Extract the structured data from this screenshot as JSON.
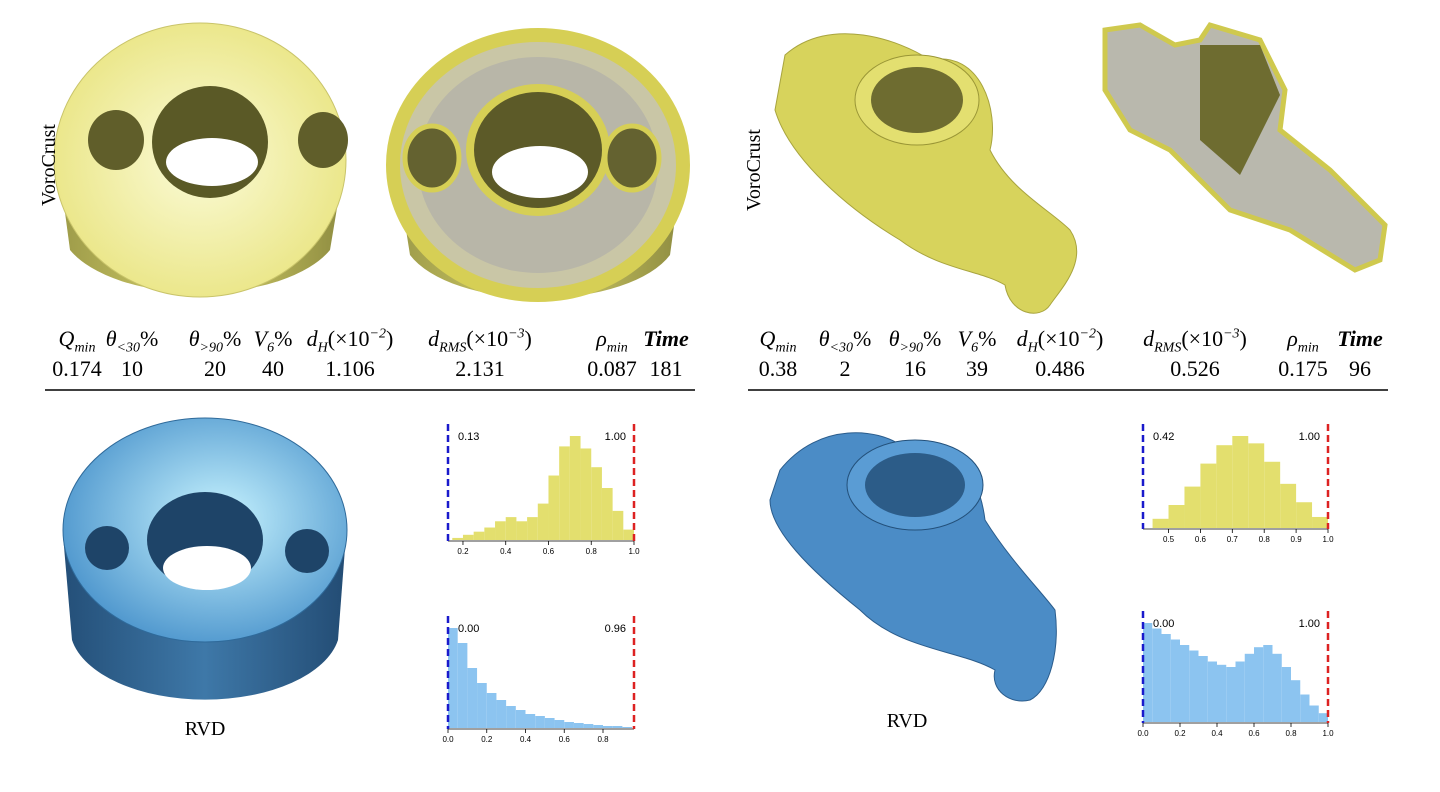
{
  "panels": [
    {
      "top_label": "VoroCrust",
      "bottom_label": "RVD",
      "table": {
        "headers": [
          {
            "t": "Q",
            "sub": "min"
          },
          {
            "t": "θ",
            "sub": "<30",
            "end": "%"
          },
          {
            "t": "θ",
            "sub": ">90",
            "end": "%"
          },
          {
            "t": "V",
            "sub": "6",
            "end": "%"
          },
          {
            "t": "d",
            "sub": "H",
            "mid": "(×10",
            "sup": "−2",
            "end": ")"
          },
          {
            "t": "d",
            "sub": "RMS",
            "mid": "(×10",
            "sup": "−3",
            "end": ")"
          },
          {
            "t": "ρ",
            "sub": "min"
          },
          {
            "t": "Time",
            "bold": true
          }
        ],
        "values": [
          0.174,
          10,
          20,
          40,
          1.106,
          2.131,
          0.087,
          181
        ]
      },
      "histograms": [
        {
          "color": "#e3df6e",
          "markers": [
            {
              "value": 0.13,
              "label": "0.13",
              "color": "#1a1acc"
            },
            {
              "value": 1.0,
              "label": "1.00",
              "color": "#dd2222"
            }
          ],
          "ticks": [
            {
              "value": 0.2,
              "label": "0.2"
            },
            {
              "value": 0.4,
              "label": "0.4"
            },
            {
              "value": 0.6,
              "label": "0.6"
            },
            {
              "value": 0.8,
              "label": "0.8"
            },
            {
              "value": 1.0,
              "label": "1.0"
            }
          ],
          "bins": [
            0.15,
            0.2,
            0.25,
            0.3,
            0.35,
            0.4,
            0.45,
            0.5,
            0.55,
            0.6,
            0.65,
            0.7,
            0.75,
            0.8,
            0.85,
            0.9,
            0.95,
            1.0
          ],
          "counts": [
            2,
            5,
            8,
            12,
            18,
            22,
            18,
            22,
            35,
            62,
            90,
            100,
            88,
            70,
            50,
            28,
            10
          ]
        },
        {
          "color": "#8cc4f0",
          "markers": [
            {
              "value": 0.0,
              "label": "0.00",
              "color": "#1a1acc"
            },
            {
              "value": 0.96,
              "label": "0.96",
              "color": "#dd2222"
            }
          ],
          "ticks": [
            {
              "value": 0.0,
              "label": "0.0"
            },
            {
              "value": 0.2,
              "label": "0.2"
            },
            {
              "value": 0.4,
              "label": "0.4"
            },
            {
              "value": 0.6,
              "label": "0.6"
            },
            {
              "value": 0.8,
              "label": "0.8"
            }
          ],
          "bins": [
            0.0,
            0.05,
            0.1,
            0.15,
            0.2,
            0.25,
            0.3,
            0.35,
            0.4,
            0.45,
            0.5,
            0.55,
            0.6,
            0.65,
            0.7,
            0.75,
            0.8,
            0.85,
            0.9,
            0.95
          ],
          "counts": [
            100,
            85,
            60,
            45,
            35,
            28,
            22,
            18,
            14,
            12,
            10,
            8,
            6,
            5,
            4,
            3,
            2,
            2,
            1
          ]
        }
      ]
    },
    {
      "top_label": "VoroCrust",
      "bottom_label": "RVD",
      "table": {
        "headers": [
          {
            "t": "Q",
            "sub": "min"
          },
          {
            "t": "θ",
            "sub": "<30",
            "end": "%"
          },
          {
            "t": "θ",
            "sub": ">90",
            "end": "%"
          },
          {
            "t": "V",
            "sub": "6",
            "end": "%"
          },
          {
            "t": "d",
            "sub": "H",
            "mid": "(×10",
            "sup": "−2",
            "end": ")"
          },
          {
            "t": "d",
            "sub": "RMS",
            "mid": "(×10",
            "sup": "−3",
            "end": ")"
          },
          {
            "t": "ρ",
            "sub": "min"
          },
          {
            "t": "Time",
            "bold": true
          }
        ],
        "values": [
          0.38,
          2,
          16,
          39,
          0.486,
          0.526,
          0.175,
          96
        ]
      },
      "histograms": [
        {
          "color": "#e3df6e",
          "markers": [
            {
              "value": 0.42,
              "label": "0.42",
              "color": "#1a1acc"
            },
            {
              "value": 1.0,
              "label": "1.00",
              "color": "#dd2222"
            }
          ],
          "ticks": [
            {
              "value": 0.5,
              "label": "0.5"
            },
            {
              "value": 0.6,
              "label": "0.6"
            },
            {
              "value": 0.7,
              "label": "0.7"
            },
            {
              "value": 0.8,
              "label": "0.8"
            },
            {
              "value": 0.9,
              "label": "0.9"
            },
            {
              "value": 1.0,
              "label": "1.0"
            }
          ],
          "bins": [
            0.45,
            0.5,
            0.55,
            0.6,
            0.65,
            0.7,
            0.75,
            0.8,
            0.85,
            0.9,
            0.95,
            1.0
          ],
          "counts": [
            10,
            25,
            45,
            70,
            90,
            100,
            92,
            72,
            48,
            28,
            12
          ]
        },
        {
          "color": "#8cc4f0",
          "markers": [
            {
              "value": 0.0,
              "label": "0.00",
              "color": "#1a1acc"
            },
            {
              "value": 1.0,
              "label": "1.00",
              "color": "#dd2222"
            }
          ],
          "ticks": [
            {
              "value": 0.0,
              "label": "0.0"
            },
            {
              "value": 0.2,
              "label": "0.2"
            },
            {
              "value": 0.4,
              "label": "0.4"
            },
            {
              "value": 0.6,
              "label": "0.6"
            },
            {
              "value": 0.8,
              "label": "0.8"
            },
            {
              "value": 1.0,
              "label": "1.0"
            }
          ],
          "bins": [
            0.0,
            0.05,
            0.1,
            0.15,
            0.2,
            0.25,
            0.3,
            0.35,
            0.4,
            0.45,
            0.5,
            0.55,
            0.6,
            0.65,
            0.7,
            0.75,
            0.8,
            0.85,
            0.9,
            0.95,
            1.0
          ],
          "counts": [
            90,
            85,
            80,
            75,
            70,
            65,
            60,
            55,
            52,
            50,
            55,
            62,
            68,
            70,
            62,
            50,
            38,
            25,
            15,
            8
          ]
        }
      ]
    }
  ]
}
